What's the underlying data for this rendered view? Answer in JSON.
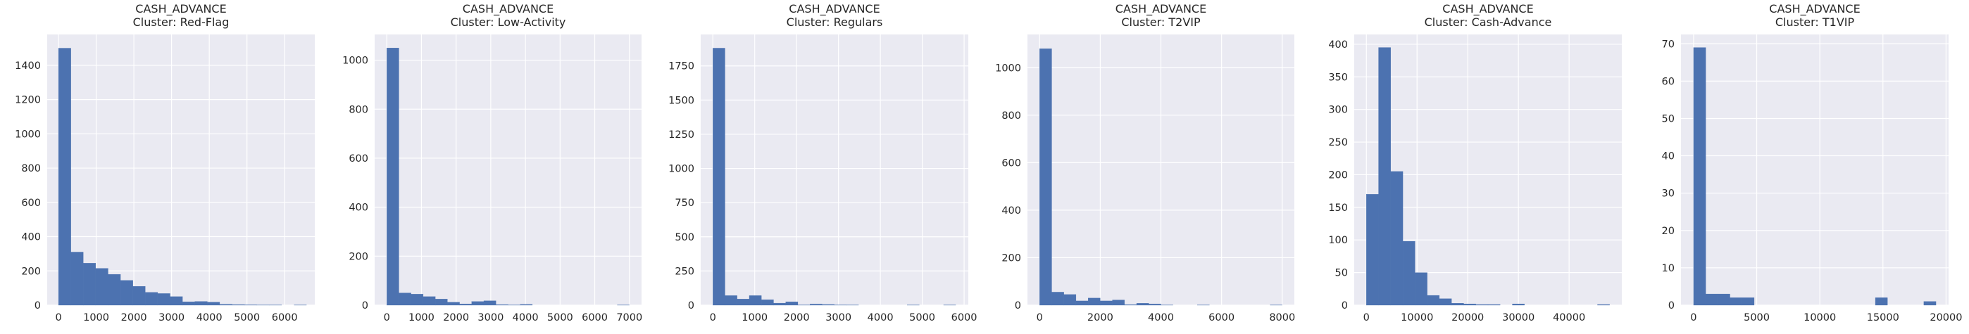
{
  "style": {
    "background": "#ffffff",
    "axes_facecolor": "#eaeaf2",
    "grid_color": "#ffffff",
    "bar_color": "#4c72b0",
    "text_color": "#262626"
  },
  "chart_data": [
    {
      "type": "bar",
      "title_line1": "CASH_ADVANCE",
      "title_line2": "Cluster: Red-Flag",
      "grid": true,
      "xlim": [
        -300,
        6800
      ],
      "ylim": [
        0,
        1580
      ],
      "xticks": [
        0,
        1000,
        2000,
        3000,
        4000,
        5000,
        6000
      ],
      "yticks": [
        0,
        200,
        400,
        600,
        800,
        1000,
        1200,
        1400
      ],
      "bin_edges": [
        0,
        329,
        658,
        987,
        1316,
        1645,
        1974,
        2303,
        2632,
        2961,
        3290,
        3619,
        3948,
        4277,
        4606,
        4935,
        5264,
        5593,
        5922,
        6251,
        6580
      ],
      "counts": [
        1500,
        310,
        245,
        215,
        180,
        145,
        110,
        75,
        68,
        50,
        20,
        22,
        18,
        5,
        3,
        2,
        1,
        1,
        0,
        1
      ]
    },
    {
      "type": "bar",
      "title_line1": "CASH_ADVANCE",
      "title_line2": "Cluster: Low-Activity",
      "grid": true,
      "xlim": [
        -350,
        7350
      ],
      "ylim": [
        0,
        1105
      ],
      "xticks": [
        0,
        1000,
        2000,
        3000,
        4000,
        5000,
        6000,
        7000
      ],
      "yticks": [
        0,
        200,
        400,
        600,
        800,
        1000
      ],
      "bin_edges": [
        0,
        350,
        700,
        1050,
        1400,
        1750,
        2100,
        2450,
        2800,
        3150,
        3500,
        3850,
        4200,
        4550,
        4900,
        5250,
        5600,
        5950,
        6300,
        6650,
        7000
      ],
      "counts": [
        1050,
        50,
        45,
        35,
        25,
        12,
        5,
        15,
        18,
        2,
        1,
        3,
        0,
        0,
        0,
        0,
        0,
        0,
        0,
        1
      ]
    },
    {
      "type": "bar",
      "title_line1": "CASH_ADVANCE",
      "title_line2": "Cluster: Regulars",
      "grid": true,
      "xlim": [
        -290,
        6100
      ],
      "ylim": [
        0,
        1980
      ],
      "xticks": [
        0,
        1000,
        2000,
        3000,
        4000,
        5000,
        6000
      ],
      "yticks": [
        0,
        250,
        500,
        750,
        1000,
        1250,
        1500,
        1750
      ],
      "bin_edges": [
        0,
        290,
        580,
        870,
        1160,
        1450,
        1740,
        2030,
        2320,
        2610,
        2900,
        3190,
        3480,
        3770,
        4060,
        4350,
        4640,
        4930,
        5220,
        5510,
        5800
      ],
      "counts": [
        1880,
        70,
        45,
        70,
        40,
        15,
        25,
        2,
        8,
        5,
        2,
        1,
        0,
        0,
        0,
        0,
        1,
        0,
        0,
        1
      ]
    },
    {
      "type": "bar",
      "title_line1": "CASH_ADVANCE",
      "title_line2": "Cluster: T2VIP",
      "grid": true,
      "xlim": [
        -400,
        8400
      ],
      "ylim": [
        0,
        1140
      ],
      "xticks": [
        0,
        2000,
        4000,
        6000,
        8000
      ],
      "yticks": [
        0,
        200,
        400,
        600,
        800,
        1000
      ],
      "bin_edges": [
        0,
        400,
        800,
        1200,
        1600,
        2000,
        2400,
        2800,
        3200,
        3600,
        4000,
        4400,
        4800,
        5200,
        5600,
        6000,
        6400,
        6800,
        7200,
        7600,
        8000
      ],
      "counts": [
        1080,
        55,
        45,
        18,
        30,
        18,
        22,
        2,
        8,
        5,
        1,
        0,
        0,
        1,
        0,
        0,
        0,
        0,
        0,
        1
      ]
    },
    {
      "type": "bar",
      "title_line1": "CASH_ADVANCE",
      "title_line2": "Cluster: Cash-Advance",
      "grid": true,
      "xlim": [
        -2400,
        50400
      ],
      "ylim": [
        0,
        415
      ],
      "xticks": [
        0,
        10000,
        20000,
        30000,
        40000
      ],
      "yticks": [
        0,
        50,
        100,
        150,
        200,
        250,
        300,
        350,
        400
      ],
      "bin_edges": [
        0,
        2400,
        4800,
        7200,
        9600,
        12000,
        14400,
        16800,
        19200,
        21600,
        24000,
        26400,
        28800,
        31200,
        33600,
        36000,
        38400,
        40800,
        43200,
        45600,
        48000
      ],
      "counts": [
        170,
        395,
        205,
        98,
        50,
        15,
        10,
        3,
        2,
        1,
        1,
        0,
        2,
        0,
        0,
        0,
        0,
        0,
        0,
        1
      ]
    },
    {
      "type": "bar",
      "title_line1": "CASH_ADVANCE",
      "title_line2": "Cluster: T1VIP",
      "grid": true,
      "xlim": [
        -1000,
        20200
      ],
      "ylim": [
        0,
        72.5
      ],
      "xticks": [
        0,
        5000,
        10000,
        15000,
        20000
      ],
      "yticks": [
        0,
        10,
        20,
        30,
        40,
        50,
        60,
        70
      ],
      "bin_edges": [
        0,
        960,
        1920,
        2880,
        3840,
        4800,
        5760,
        6720,
        7680,
        8640,
        9600,
        10560,
        11520,
        12480,
        13440,
        14400,
        15360,
        16320,
        17280,
        18240,
        19200
      ],
      "counts": [
        69,
        3,
        3,
        2,
        2,
        0,
        0,
        0,
        0,
        0,
        0,
        0,
        0,
        0,
        0,
        2,
        0,
        0,
        0,
        1
      ]
    }
  ]
}
